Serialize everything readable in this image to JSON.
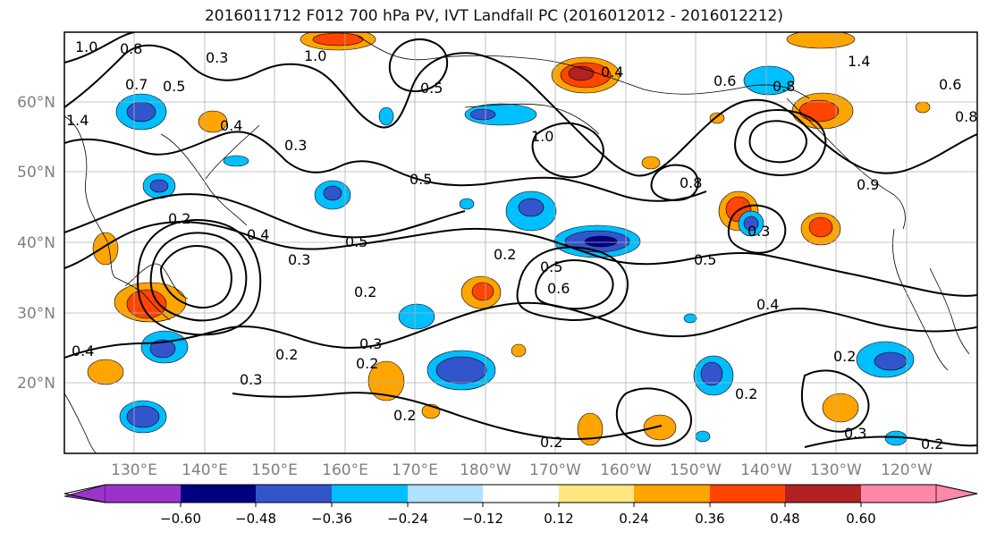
{
  "title": "2016011712 F012 700 hPa PV, IVT Landfall PC (2016012012 - 2016012212)",
  "map": {
    "lat_ticks": [
      "60°N",
      "50°N",
      "40°N",
      "30°N",
      "20°N"
    ],
    "lon_ticks": [
      "130°E",
      "140°E",
      "150°E",
      "160°E",
      "170°E",
      "180°W",
      "170°W",
      "160°W",
      "150°W",
      "140°W",
      "130°W",
      "120°W"
    ],
    "contour_labels": [
      "1.0",
      "0.8",
      "0.3",
      "1.0",
      "0.5",
      "0.7",
      "0.4",
      "0.5",
      "0.6",
      "0.8",
      "1.4",
      "1.0",
      "0.3",
      "0.5",
      "0.8",
      "0.2",
      "0.4",
      "0.3",
      "0.5",
      "0.2",
      "0.5",
      "0.6",
      "0.2",
      "0.5",
      "0.4",
      "0.3",
      "0.2",
      "0.3",
      "0.2",
      "0.2",
      "0.2",
      "0.3",
      "0.2",
      "0.2",
      "0.4",
      "1.4",
      "0.6",
      "0.8",
      "0.9",
      "0.3",
      "0.4",
      "0.2"
    ],
    "colors": {
      "axes": "#000000",
      "grid": "#b0b0b0",
      "contour": "#000000",
      "tick_label": "#808080"
    }
  },
  "colorbar": {
    "tick_labels": [
      "−0.60",
      "−0.48",
      "−0.36",
      "−0.24",
      "−0.12",
      "0.12",
      "0.24",
      "0.36",
      "0.48",
      "0.60"
    ],
    "bins": [
      "#9933cc",
      "#000080",
      "#3355cc",
      "#00bfff",
      "#b0e2ff",
      "#ffffff",
      "#ffe680",
      "#ffa500",
      "#ff4500",
      "#b22222",
      "#ff88aa"
    ]
  }
}
